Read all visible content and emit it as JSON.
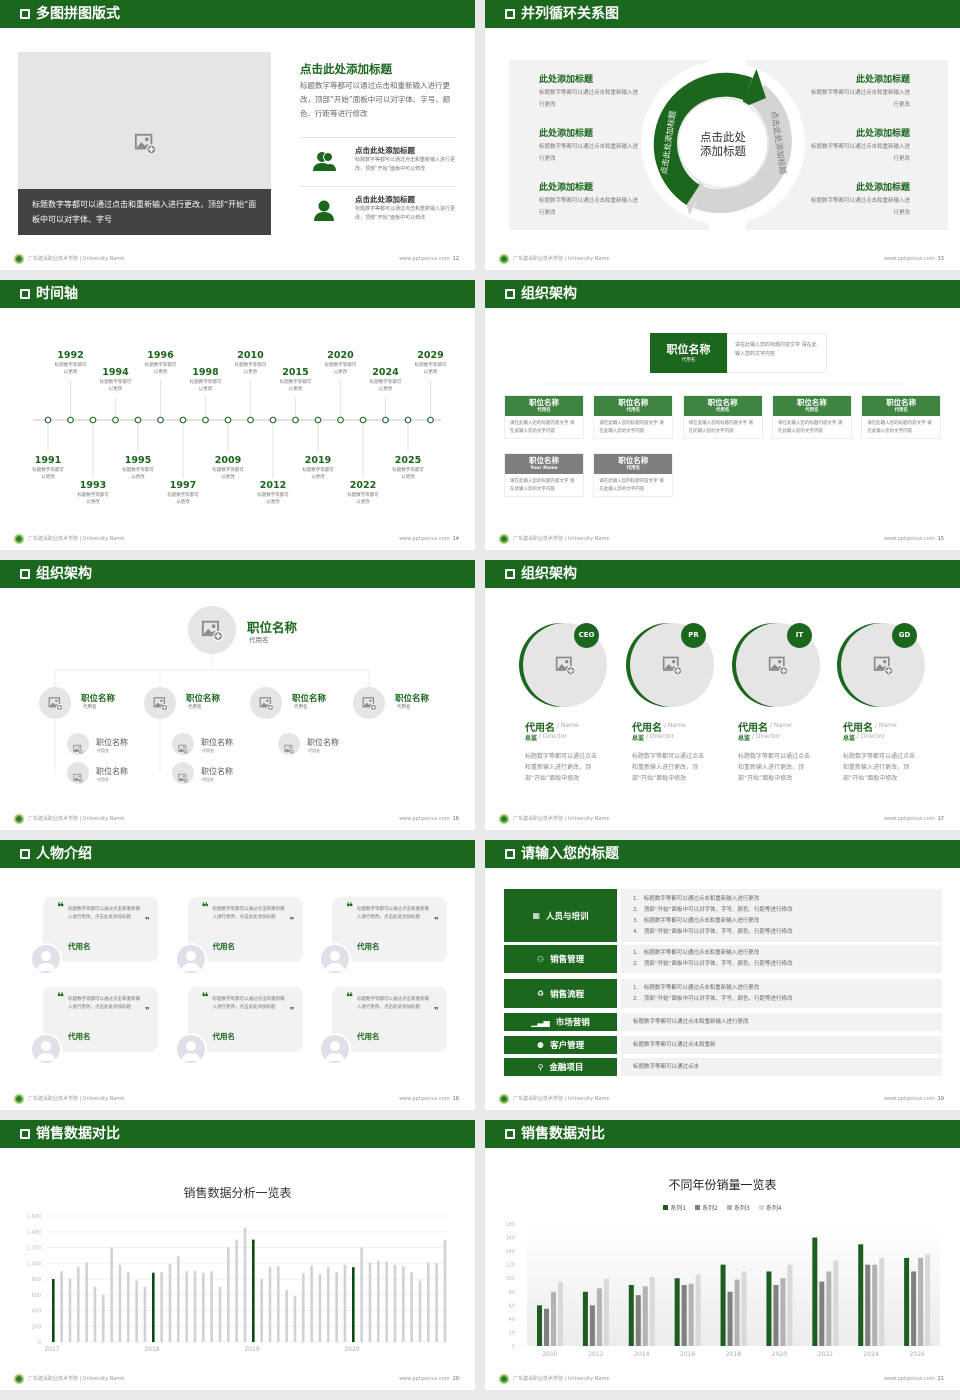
{
  "colors": {
    "primary": "#1c671e",
    "dark": "#0d4a12",
    "gray": "#808080",
    "light": "#d0d0d0",
    "panel": "#f2f2f2"
  },
  "footer": {
    "school": "广东建设职业技术学院 | University Name",
    "site": "www.pptgenius.com"
  },
  "slides": [
    {
      "title": "多图拼图版式",
      "page": "12",
      "caption": "标题数字等都可以通过点击和重新输入进行更改，顶部“开始”面板中可以对字体、字号",
      "heading": "点击此处添加标题",
      "body": "标题数字等都可以通过点击和重新输入进行更改，顶部“开始”面板中可以对字体、字号、颜色、行距等进行修改",
      "items": [
        {
          "icon": "users-icon",
          "title": "点击此处添加标题",
          "text": "标题数字等都可以通过点击和重新输入进行更改，顶部“开始”面板中可以修改"
        },
        {
          "icon": "user-icon",
          "title": "点击此处添加标题",
          "text": "标题数字等都可以通过点击和重新输入进行更改，顶部“开始”面板中可以修改"
        }
      ]
    },
    {
      "title": "并列循环关系图",
      "page": "13",
      "center": "点击此处添加标题",
      "arc_left": "点击此处添加标题",
      "arc_right": "点击此处添加标题",
      "left": [
        {
          "title": "此处添加标题",
          "text": "标题数字等都可以通过点击和重新输入进行更改"
        },
        {
          "title": "此处添加标题",
          "text": "标题数字等都可以通过点击和重新输入进行更改"
        },
        {
          "title": "此处添加标题",
          "text": "标题数字等都可以通过点击和重新输入进行更改"
        }
      ],
      "right": [
        {
          "title": "此处添加标题",
          "text": "标题数字等都可以通过点击和重新输入进行更改"
        },
        {
          "title": "此处添加标题",
          "text": "标题数字等都可以通过点击和重新输入进行更改"
        },
        {
          "title": "此处添加标题",
          "text": "标题数字等都可以通过点击和重新输入进行更改"
        }
      ]
    },
    {
      "title": "时间轴",
      "page": "14",
      "events": [
        {
          "year": "1991",
          "text": "标题数字等都可以更改"
        },
        {
          "year": "1992",
          "text": "标题数字等都可以更改"
        },
        {
          "year": "1993",
          "text": "标题数字等都可以更改"
        },
        {
          "year": "1994",
          "text": "标题数字等都可以更改"
        },
        {
          "year": "1995",
          "text": "标题数字等都可以更改"
        },
        {
          "year": "1996",
          "text": "标题数字等都可以更改"
        },
        {
          "year": "1997",
          "text": "标题数字等都可以更改"
        },
        {
          "year": "1998",
          "text": "标题数字等都可以更改"
        },
        {
          "year": "2009",
          "text": "标题数字等都可以更改"
        },
        {
          "year": "2010",
          "text": "标题数字等都可以更改"
        },
        {
          "year": "2012",
          "text": "标题数字等都可以更改"
        },
        {
          "year": "2015",
          "text": "标题数字等都可以更改"
        },
        {
          "year": "2019",
          "text": "标题数字等都可以更改"
        },
        {
          "year": "2020",
          "text": "标题数字等都可以更改"
        },
        {
          "year": "2022",
          "text": "标题数字等都可以更改"
        },
        {
          "year": "2024",
          "text": "标题数字等都可以更改"
        },
        {
          "year": "2025",
          "text": "标题数字等都可以更改"
        },
        {
          "year": "2029",
          "text": "标题数字等都可以更改"
        }
      ]
    },
    {
      "title": "组织架构",
      "page": "15",
      "top": {
        "name": "职位名称",
        "sub": "代用名",
        "text": "请在此输入您的标题内容文字 请在此输入您的文字内容"
      },
      "boxes": [
        {
          "name": "职位名称",
          "sub": "代用名",
          "text": "请在此输入您的标题内容文字 请在此输入您的文字内容",
          "color": "green"
        },
        {
          "name": "职位名称",
          "sub": "代用名",
          "text": "请在此输入您的标题内容文字 请在此输入您的文字内容",
          "color": "green"
        },
        {
          "name": "职位名称",
          "sub": "代用名",
          "text": "请在此输入您的标题内容文字 请在此输入您的文字内容",
          "color": "green"
        },
        {
          "name": "职位名称",
          "sub": "代用名",
          "text": "请在此输入您的标题内容文字 请在此输入您的文字内容",
          "color": "green"
        },
        {
          "name": "职位名称",
          "sub": "代用名",
          "text": "请在此输入您的标题内容文字 请在此输入您的文字内容",
          "color": "green"
        },
        {
          "name": "职位名称",
          "sub": "Your Name",
          "text": "请在此输入您的标题内容文字 请在此输入您的文字内容",
          "color": "gray"
        },
        {
          "name": "职位名称",
          "sub": "代用名",
          "text": "请在此输入您的标题内容文字 请在此输入您的文字内容",
          "color": "gray"
        }
      ]
    },
    {
      "title": "组织架构",
      "page": "16",
      "top": {
        "name": "职位名称",
        "sub": "代用名"
      },
      "mid": [
        {
          "name": "职位名称",
          "sub": "代用名",
          "children": [
            {
              "name": "职位名称",
              "sub": "代用名"
            },
            {
              "name": "职位名称",
              "sub": "代用名"
            }
          ]
        },
        {
          "name": "职位名称",
          "sub": "代用名",
          "children": [
            {
              "name": "职位名称",
              "sub": "代用名"
            },
            {
              "name": "职位名称",
              "sub": "代用名"
            }
          ]
        },
        {
          "name": "职位名称",
          "sub": "代用名",
          "children": [
            {
              "name": "职位名称",
              "sub": "代用名"
            }
          ]
        },
        {
          "name": "职位名称",
          "sub": "代用名",
          "children": []
        }
      ]
    },
    {
      "title": "组织架构",
      "page": "17",
      "people": [
        {
          "badge": "CEO",
          "name": "代用名",
          "name_en": "/ Name",
          "role": "总监",
          "role_en": "/  Director",
          "text": "标题数字等都可以通过点击和重新输入进行更改，顶部“开始”面板中修改"
        },
        {
          "badge": "PR",
          "name": "代用名",
          "name_en": "/ Name",
          "role": "总监",
          "role_en": "/  Director",
          "text": "标题数字等都可以通过点击和重新输入进行更改，顶部“开始”面板中修改"
        },
        {
          "badge": "IT",
          "name": "代用名",
          "name_en": "/ Name",
          "role": "总监",
          "role_en": "/  Director",
          "text": "标题数字等都可以通过点击和重新输入进行更改，顶部“开始”面板中修改"
        },
        {
          "badge": "GD",
          "name": "代用名",
          "name_en": "/ Name",
          "role": "总监",
          "role_en": "/  Director",
          "text": "标题数字等都可以通过点击和重新输入进行更改，顶部“开始”面板中修改"
        }
      ]
    },
    {
      "title": "人物介绍",
      "page": "18",
      "quotes": [
        {
          "text": "标题数字等都可以通过点击和重新输入进行更改，点击此处添加标题",
          "name": "代用名"
        },
        {
          "text": "标题数字等都可以通过点击和重新输入进行更改，点击此处添加标题",
          "name": "代用名"
        },
        {
          "text": "标题数字等都可以通过点击和重新输入进行更改，点击此处添加标题",
          "name": "代用名"
        },
        {
          "text": "标题数字等都可以通过点击和重新输入进行更改，点击此处添加标题",
          "name": "代用名"
        },
        {
          "text": "标题数字等都可以通过点击和重新输入进行更改，点击此处添加标题",
          "name": "代用名"
        },
        {
          "text": "标题数字等都可以通过点击和重新输入进行更改，点击此处添加标题",
          "name": "代用名"
        }
      ]
    },
    {
      "title": "请输入您的标题",
      "page": "19",
      "rows": [
        {
          "icon": "training-icon",
          "label": "人员与培训",
          "lines": [
            "1.　标题数字等都可以通过点击和重新输入进行更改",
            "2.　顶部“开始”面板中可以对字体、字号、颜色、行距等进行修改",
            "3.　标题数字等都可以通过点击和重新输入进行更改",
            "4.　顶部“开始”面板中可以对字体、字号、颜色、行距等进行修改"
          ]
        },
        {
          "icon": "sales-management-icon",
          "label": "销售管理",
          "lines": [
            "1.　标题数字等都可以通过点击和重新输入进行更改",
            "2.　顶部“开始”面板中可以对字体、字号、颜色、行距等进行修改"
          ]
        },
        {
          "icon": "recycle-icon",
          "label": "销售流程",
          "lines": [
            "1.　标题数字等都可以通过点击和重新输入进行更改",
            "2.　顶部“开始”面板中可以对字体、字号、颜色、行距等进行修改"
          ]
        },
        {
          "icon": "bar-chart-icon",
          "label": "市场营销",
          "lines": [
            "标题数字等都可以通过点击和重新输入进行更改"
          ]
        },
        {
          "icon": "customers-icon",
          "label": "客户管理",
          "lines": [
            "标题数字等都可以通过点击和重新"
          ]
        },
        {
          "icon": "finance-icon",
          "label": "金融项目",
          "lines": [
            "标题数字等都可以通过点击"
          ]
        }
      ]
    },
    {
      "title": "销售数据对比",
      "page": "20"
    },
    {
      "title": "销售数据对比",
      "page": "21"
    }
  ],
  "chart_data": [
    {
      "type": "bar",
      "title": "销售数据分析一览表",
      "xlabel": "",
      "ylabel": "",
      "ylim": [
        0,
        1600
      ],
      "yticks": [
        "0",
        "200",
        "400",
        "600",
        "800",
        "1,000",
        "1,200",
        "1,400",
        "1,600"
      ],
      "xtick_labels": [
        "2017",
        "2018",
        "2019",
        "2020"
      ],
      "grid": true,
      "highlight": "first bar of each year in dark green, others light gray",
      "values": [
        800,
        900,
        800,
        950,
        1010,
        700,
        600,
        1200,
        980,
        890,
        780,
        700,
        880,
        890,
        990,
        1090,
        900,
        900,
        880,
        900,
        700,
        1200,
        1300,
        1450,
        1300,
        800,
        950,
        960,
        660,
        580,
        870,
        970,
        860,
        950,
        890,
        980,
        950,
        1200,
        1010,
        1030,
        1020,
        980,
        960,
        890,
        780,
        1010,
        1000,
        1300
      ]
    },
    {
      "type": "bar",
      "title": "不同年份销量一览表",
      "legend": "top",
      "ylim": [
        0,
        180
      ],
      "yticks": [
        "0",
        "20",
        "40",
        "60",
        "80",
        "100",
        "120",
        "140",
        "160",
        "180"
      ],
      "categories": [
        "2010",
        "2012",
        "2014",
        "2016",
        "2018",
        "2020",
        "2022",
        "2024",
        "2026"
      ],
      "series": [
        {
          "name": "系列1",
          "color": "#1b5e20",
          "values": [
            60,
            80,
            90,
            100,
            120,
            110,
            160,
            150,
            130
          ]
        },
        {
          "name": "系列2",
          "color": "#808080",
          "values": [
            55,
            60,
            75,
            90,
            80,
            90,
            95,
            120,
            110
          ]
        },
        {
          "name": "系列3",
          "color": "#b3b3b3",
          "values": [
            80,
            85,
            88,
            92,
            98,
            100,
            110,
            120,
            130
          ]
        },
        {
          "name": "系列4",
          "color": "#d9d9d9",
          "values": [
            95,
            99,
            102,
            105,
            110,
            120,
            126,
            130,
            135
          ]
        }
      ]
    }
  ]
}
